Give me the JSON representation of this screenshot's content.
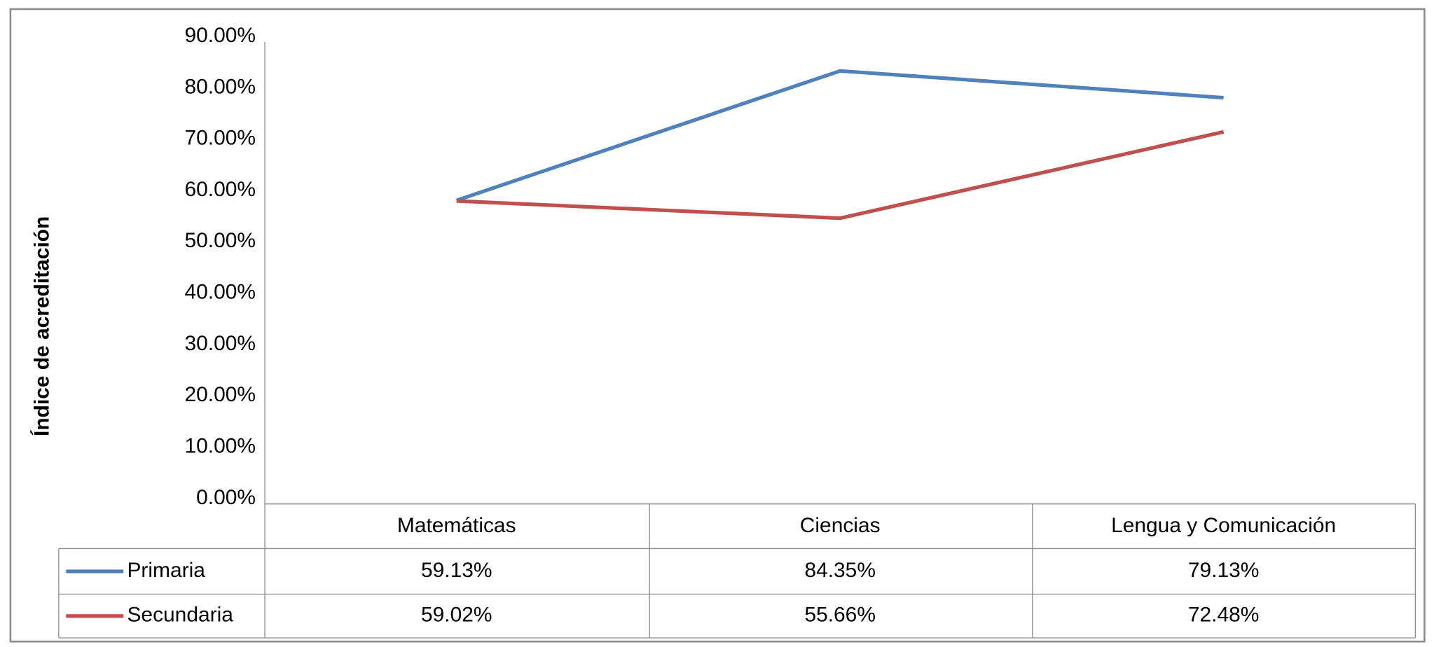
{
  "chart_data": {
    "type": "line",
    "y_label": "Índice de acreditación",
    "categories": [
      "Matemáticas",
      "Ciencias",
      "Lengua y Comunicación"
    ],
    "series": [
      {
        "name": "Primaria",
        "color": "#4f81bd",
        "values": [
          59.13,
          84.35,
          79.13
        ],
        "value_labels": [
          "59.13%",
          "84.35%",
          "79.13%"
        ]
      },
      {
        "name": "Secundaria",
        "color": "#c0504d",
        "values": [
          59.02,
          55.66,
          72.48
        ],
        "value_labels": [
          "59.02%",
          "55.66%",
          "72.48%"
        ]
      }
    ],
    "ylim": [
      0,
      90
    ],
    "yticks": [
      {
        "value": 0,
        "label": "0.00%"
      },
      {
        "value": 10,
        "label": "10.00%"
      },
      {
        "value": 20,
        "label": "20.00%"
      },
      {
        "value": 30,
        "label": "30.00%"
      },
      {
        "value": 40,
        "label": "40.00%"
      },
      {
        "value": 50,
        "label": "50.00%"
      },
      {
        "value": 60,
        "label": "60.00%"
      },
      {
        "value": 70,
        "label": "70.00%"
      },
      {
        "value": 80,
        "label": "80.00%"
      },
      {
        "value": 90,
        "label": "90.00%"
      }
    ],
    "grid": false
  }
}
